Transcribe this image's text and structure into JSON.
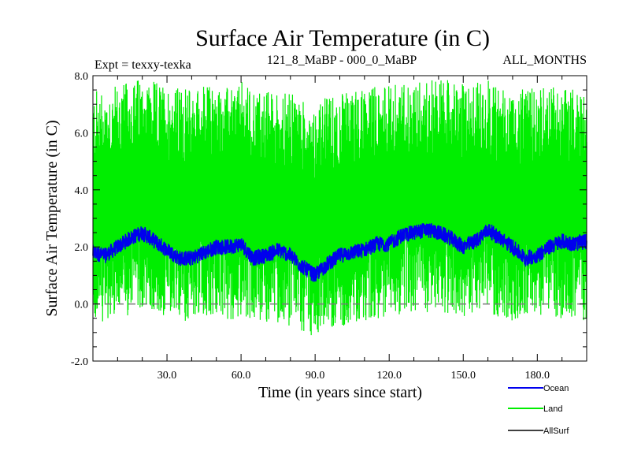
{
  "chart_data": {
    "type": "line",
    "title": "Surface Air Temperature (in C)",
    "subtitle_left": "Expt = texxy-texka",
    "subtitle_center": "121_8_MaBP - 000_0_MaBP",
    "subtitle_right": "ALL_MONTHS",
    "xlabel": "Time (in years since start)",
    "ylabel": "Surface Air Temperature (in C)",
    "xlim": [
      0,
      200
    ],
    "ylim": [
      -2,
      8
    ],
    "xticks": [
      30,
      60,
      90,
      120,
      150,
      180
    ],
    "xtick_labels": [
      "30.0",
      "60.0",
      "90.0",
      "120.0",
      "150.0",
      "180.0"
    ],
    "yticks": [
      -2,
      0,
      2,
      4,
      6,
      8
    ],
    "ytick_labels": [
      "-2.0",
      "0.0",
      "2.0",
      "4.0",
      "6.0",
      "8.0"
    ],
    "reference_line": {
      "y": 0,
      "style": "dashed"
    },
    "legend_position": "bottom-right",
    "series": [
      {
        "name": "Land",
        "color": "#00ee00",
        "x": [
          0,
          5,
          10,
          15,
          20,
          25,
          30,
          35,
          40,
          45,
          50,
          55,
          60,
          65,
          70,
          75,
          80,
          85,
          90,
          95,
          100,
          105,
          110,
          115,
          120,
          125,
          130,
          135,
          140,
          145,
          150,
          155,
          160,
          165,
          170,
          175,
          180,
          185,
          190,
          195,
          200
        ],
        "mean": [
          3.4,
          3.5,
          3.6,
          3.7,
          3.9,
          3.7,
          3.6,
          3.5,
          3.5,
          3.6,
          3.6,
          3.5,
          3.7,
          3.5,
          3.4,
          3.4,
          3.3,
          3.1,
          2.9,
          3.2,
          3.3,
          3.4,
          3.5,
          3.6,
          3.6,
          3.7,
          3.8,
          3.8,
          3.9,
          3.7,
          3.6,
          3.7,
          3.8,
          3.6,
          3.5,
          3.4,
          3.5,
          3.6,
          3.6,
          3.5,
          3.5
        ],
        "max_approx": 8.0,
        "min_approx": -1.4
      },
      {
        "name": "Ocean",
        "color": "#0000ee",
        "x": [
          0,
          5,
          10,
          15,
          20,
          25,
          30,
          35,
          40,
          45,
          50,
          55,
          60,
          65,
          70,
          75,
          80,
          85,
          90,
          95,
          100,
          105,
          110,
          115,
          120,
          125,
          130,
          135,
          140,
          145,
          150,
          155,
          160,
          165,
          170,
          175,
          180,
          185,
          190,
          195,
          200
        ],
        "values": [
          1.8,
          1.7,
          2.0,
          2.3,
          2.5,
          2.2,
          1.9,
          1.6,
          1.6,
          1.8,
          2.0,
          2.0,
          2.1,
          1.6,
          1.7,
          1.9,
          1.7,
          1.3,
          1.0,
          1.4,
          1.7,
          1.8,
          1.9,
          2.1,
          2.1,
          2.4,
          2.5,
          2.6,
          2.5,
          2.3,
          2.0,
          2.2,
          2.6,
          2.3,
          2.0,
          1.6,
          1.7,
          2.0,
          2.2,
          2.1,
          2.2
        ]
      },
      {
        "name": "AllSurf",
        "color": "#000000",
        "values": []
      }
    ]
  }
}
